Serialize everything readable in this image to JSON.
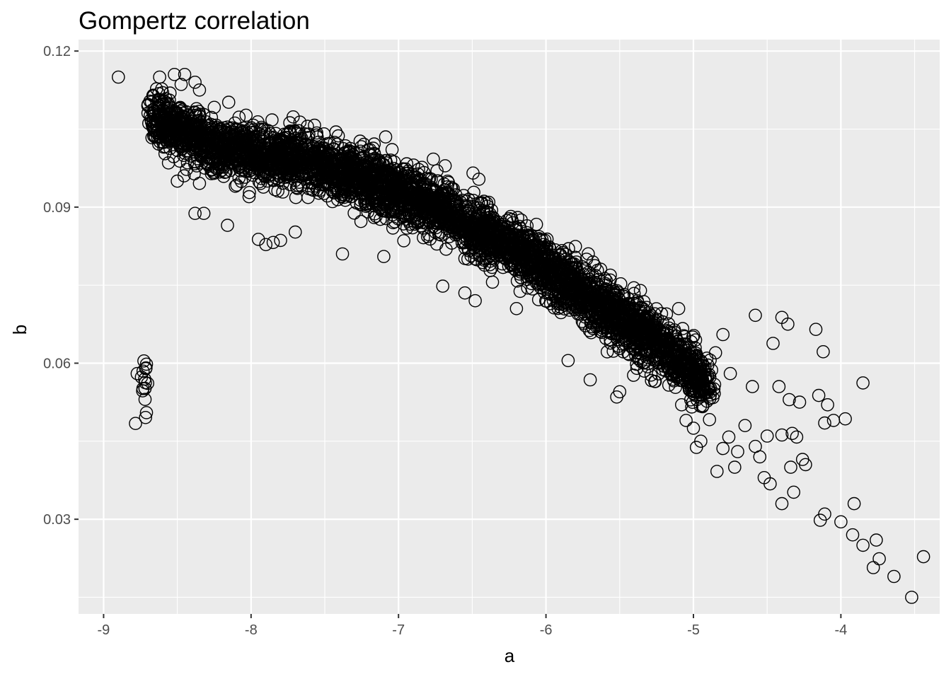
{
  "chart_data": {
    "type": "scatter",
    "title": "Gompertz correlation",
    "xlabel": "a",
    "ylabel": "b",
    "xlim": [
      -9.17,
      -3.33
    ],
    "ylim": [
      0.0118,
      0.1222
    ],
    "x_ticks": [
      -9,
      -8,
      -7,
      -6,
      -5,
      -4
    ],
    "y_ticks": [
      0.03,
      0.06,
      0.09,
      0.12
    ],
    "y_tick_labels": [
      "0.03",
      "0.06",
      "0.09",
      "0.12"
    ],
    "grid": true,
    "legend": "none",
    "marker": "open-circle",
    "panel_color": "#ebebeb",
    "grid_color": "#ffffff",
    "point_color": "#000000",
    "main_cloud": {
      "trend": [
        [
          -8.7,
          0.1075
        ],
        [
          -8.2,
          0.101
        ],
        [
          -7.7,
          0.0995
        ],
        [
          -7.2,
          0.095
        ],
        [
          -6.7,
          0.0895
        ],
        [
          -6.2,
          0.0815
        ],
        [
          -5.7,
          0.0725
        ],
        [
          -5.2,
          0.063
        ],
        [
          -4.9,
          0.056
        ]
      ],
      "band_half_width": 0.0065,
      "n_points": 4200
    },
    "points": [
      [
        -8.9,
        0.115
      ],
      [
        -8.62,
        0.115
      ],
      [
        -8.52,
        0.1155
      ],
      [
        -8.45,
        0.1155
      ],
      [
        -8.38,
        0.114
      ],
      [
        -8.35,
        0.1125
      ],
      [
        -8.6,
        0.112
      ],
      [
        -8.7,
        0.1095
      ],
      [
        -8.66,
        0.107
      ],
      [
        -8.6,
        0.104
      ],
      [
        -8.56,
        0.0985
      ],
      [
        -8.5,
        0.095
      ],
      [
        -8.38,
        0.0888
      ],
      [
        -8.32,
        0.0888
      ],
      [
        -8.16,
        0.0865
      ],
      [
        -7.95,
        0.0838
      ],
      [
        -7.9,
        0.0828
      ],
      [
        -7.85,
        0.0832
      ],
      [
        -7.8,
        0.0836
      ],
      [
        -7.7,
        0.0852
      ],
      [
        -7.38,
        0.081
      ],
      [
        -7.1,
        0.0805
      ],
      [
        -6.7,
        0.0748
      ],
      [
        -6.55,
        0.0735
      ],
      [
        -6.48,
        0.072
      ],
      [
        -6.2,
        0.0705
      ],
      [
        -5.85,
        0.0605
      ],
      [
        -5.7,
        0.0568
      ],
      [
        -5.52,
        0.0535
      ],
      [
        -5.5,
        0.0545
      ],
      [
        -5.08,
        0.052
      ],
      [
        -5.05,
        0.049
      ],
      [
        -5.0,
        0.0475
      ],
      [
        -4.98,
        0.0438
      ],
      [
        -4.95,
        0.045
      ],
      [
        -5.1,
        0.0705
      ],
      [
        -4.8,
        0.0655
      ],
      [
        -4.85,
        0.062
      ],
      [
        -4.75,
        0.058
      ],
      [
        -4.84,
        0.0392
      ],
      [
        -4.8,
        0.0436
      ],
      [
        -4.76,
        0.0458
      ],
      [
        -4.72,
        0.04
      ],
      [
        -4.7,
        0.043
      ],
      [
        -4.65,
        0.048
      ],
      [
        -4.6,
        0.0555
      ],
      [
        -4.58,
        0.0692
      ],
      [
        -4.58,
        0.044
      ],
      [
        -4.55,
        0.042
      ],
      [
        -4.52,
        0.038
      ],
      [
        -4.5,
        0.046
      ],
      [
        -4.48,
        0.0368
      ],
      [
        -4.46,
        0.0638
      ],
      [
        -4.42,
        0.0555
      ],
      [
        -4.4,
        0.0688
      ],
      [
        -4.4,
        0.0462
      ],
      [
        -4.4,
        0.033
      ],
      [
        -4.36,
        0.0675
      ],
      [
        -4.35,
        0.053
      ],
      [
        -4.34,
        0.04
      ],
      [
        -4.33,
        0.0465
      ],
      [
        -4.32,
        0.0352
      ],
      [
        -4.3,
        0.0458
      ],
      [
        -4.28,
        0.0525
      ],
      [
        -4.26,
        0.0415
      ],
      [
        -4.24,
        0.0405
      ],
      [
        -4.17,
        0.0665
      ],
      [
        -4.15,
        0.0538
      ],
      [
        -4.14,
        0.0298
      ],
      [
        -4.12,
        0.0622
      ],
      [
        -4.11,
        0.0485
      ],
      [
        -4.11,
        0.031
      ],
      [
        -4.09,
        0.052
      ],
      [
        -4.05,
        0.049
      ],
      [
        -4.0,
        0.0295
      ],
      [
        -3.97,
        0.0493
      ],
      [
        -3.92,
        0.027
      ],
      [
        -3.91,
        0.033
      ],
      [
        -3.85,
        0.0562
      ],
      [
        -3.85,
        0.025
      ],
      [
        -3.78,
        0.0207
      ],
      [
        -3.76,
        0.026
      ],
      [
        -3.74,
        0.0224
      ],
      [
        -3.64,
        0.019
      ],
      [
        -3.52,
        0.015
      ],
      [
        -3.44,
        0.0228
      ]
    ]
  }
}
